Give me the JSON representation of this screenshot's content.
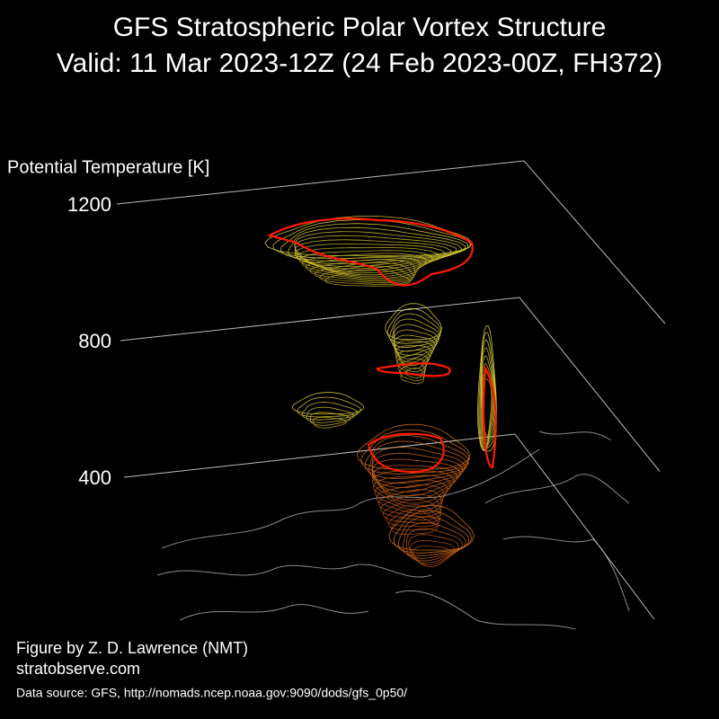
{
  "figure": {
    "title": "GFS Stratospheric Polar Vortex Structure",
    "subtitle": "Valid: 11 Mar 2023-12Z  (24 Feb 2023-00Z, FH372)",
    "axis_label": "Potential Temperature [K]",
    "ticks": [
      1200,
      800,
      400
    ],
    "credit": "Figure by Z. D. Lawrence (NMT)",
    "website": "stratobserve.com",
    "source": "Data source: GFS, http://nomads.ncep.noaa.gov:9090/dods/gfs_0p50/"
  }
}
